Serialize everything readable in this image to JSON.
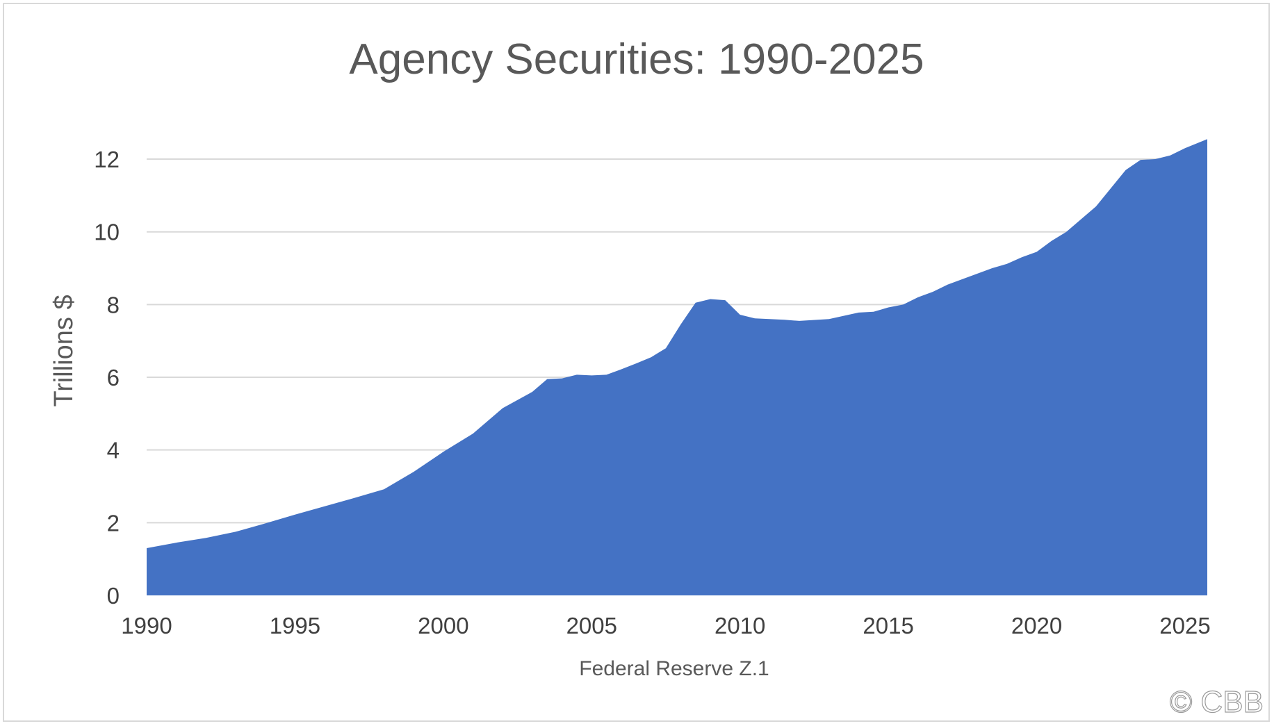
{
  "chart_data": {
    "type": "area",
    "title": "Agency Securities: 1990-2025",
    "xlabel": "Federal Reserve Z.1",
    "ylabel": "Trillions $",
    "ylim": [
      0,
      13
    ],
    "xlim": [
      1990,
      2025.75
    ],
    "yticks": [
      0,
      2,
      4,
      6,
      8,
      10,
      12
    ],
    "xticks": [
      1990,
      1995,
      2000,
      2005,
      2010,
      2015,
      2020,
      2025
    ],
    "grid": "horizontal",
    "color": "#4472c4",
    "series": [
      {
        "x": [
          1990,
          1991,
          1992,
          1993,
          1994,
          1995,
          1996,
          1997,
          1998,
          1999,
          2000,
          2001,
          2002,
          2003,
          2003.5,
          2004,
          2004.5,
          2005,
          2005.5,
          2006,
          2006.5,
          2007,
          2007.5,
          2008,
          2008.5,
          2009,
          2009.5,
          2010,
          2010.5,
          2011,
          2011.5,
          2012,
          2013,
          2014,
          2014.5,
          2015,
          2015.5,
          2016,
          2016.5,
          2017,
          2017.5,
          2018,
          2018.5,
          2019,
          2019.5,
          2020,
          2020.5,
          2021,
          2021.5,
          2022,
          2022.5,
          2023,
          2023.5,
          2024,
          2024.5,
          2025,
          2025.75
        ],
        "y": [
          1.3,
          1.45,
          1.58,
          1.75,
          1.98,
          2.22,
          2.45,
          2.68,
          2.92,
          3.4,
          3.95,
          4.45,
          5.15,
          5.6,
          5.95,
          5.97,
          6.07,
          6.05,
          6.07,
          6.22,
          6.38,
          6.55,
          6.8,
          7.45,
          8.05,
          8.15,
          8.12,
          7.72,
          7.62,
          7.6,
          7.58,
          7.55,
          7.6,
          7.78,
          7.8,
          7.92,
          8.0,
          8.2,
          8.35,
          8.55,
          8.7,
          8.85,
          9.0,
          9.12,
          9.3,
          9.45,
          9.75,
          10.0,
          10.35,
          10.7,
          11.2,
          11.7,
          11.98,
          12.0,
          12.1,
          12.3,
          12.55
        ]
      }
    ]
  },
  "footer": {
    "copyright": "© CBB"
  }
}
